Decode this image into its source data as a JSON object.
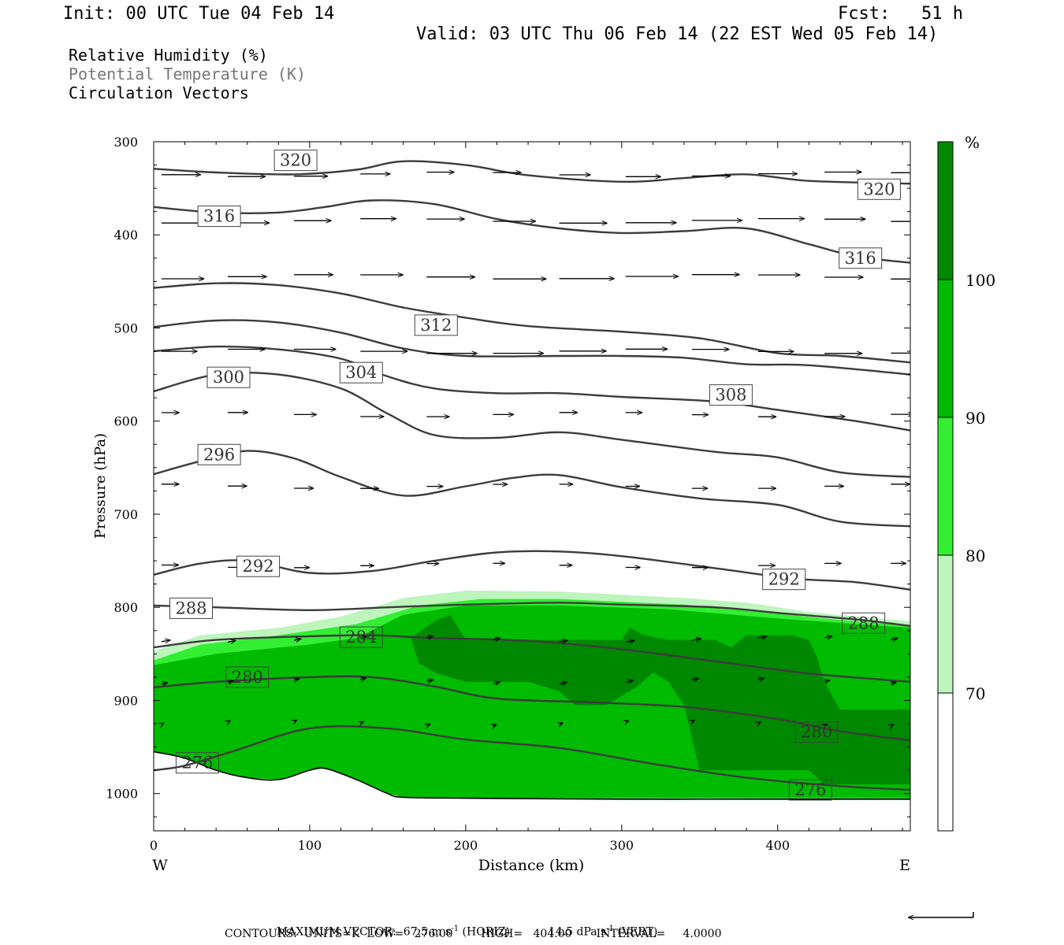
{
  "header": {
    "init": "Init: 00 UTC Tue 04 Feb 14",
    "fcst": "Fcst:   51 h",
    "valid": "Valid: 03 UTC Thu 06 Feb 14 (22 EST Wed 05 Feb 14)"
  },
  "titles": [
    {
      "text": "Relative Humidity (%)",
      "color": "#000000"
    },
    {
      "text": "Potential Temperature (K)",
      "color": "#777777"
    },
    {
      "text": "Circulation Vectors",
      "color": "#000000"
    }
  ],
  "chart_data": {
    "type": "cross-section contour",
    "xlabel": "Distance (km)",
    "ylabel": "Pressure (hPa)",
    "xlim": [
      0,
      485
    ],
    "ylim": [
      1040,
      300
    ],
    "x_ticks": [
      "0",
      "100",
      "200",
      "300",
      "400"
    ],
    "y_ticks": [
      "300",
      "400",
      "500",
      "600",
      "700",
      "800",
      "900",
      "1000"
    ],
    "x_end_labels": {
      "left": "W",
      "right": "E"
    },
    "colorbar": {
      "unit": "%",
      "levels": [
        "70",
        "80",
        "90",
        "100"
      ],
      "colors": [
        "#ffffff",
        "#bdf5bd",
        "#33ee33",
        "#00bb00",
        "#008800"
      ]
    },
    "theta_contours": [
      {
        "label": "320",
        "points": [
          [
            0,
            329
          ],
          [
            40,
            333
          ],
          [
            90,
            335
          ],
          [
            130,
            330
          ],
          [
            160,
            321
          ],
          [
            200,
            325
          ],
          [
            240,
            336
          ],
          [
            300,
            343
          ],
          [
            340,
            339
          ],
          [
            380,
            335
          ],
          [
            420,
            342
          ],
          [
            485,
            345
          ]
        ],
        "label_at": [
          [
            91,
            320
          ],
          [
            465,
            351
          ]
        ]
      },
      {
        "label": "316",
        "points": [
          [
            0,
            370
          ],
          [
            40,
            376
          ],
          [
            80,
            376
          ],
          [
            110,
            370
          ],
          [
            140,
            363
          ],
          [
            180,
            367
          ],
          [
            220,
            383
          ],
          [
            260,
            393
          ],
          [
            300,
            398
          ],
          [
            340,
            396
          ],
          [
            380,
            393
          ],
          [
            420,
            410
          ],
          [
            450,
            423
          ],
          [
            485,
            430
          ]
        ],
        "label_at": [
          [
            42,
            380
          ],
          [
            453,
            425
          ]
        ]
      },
      {
        "label": "312",
        "points": [
          [
            0,
            457
          ],
          [
            40,
            452
          ],
          [
            80,
            454
          ],
          [
            120,
            463
          ],
          [
            160,
            478
          ],
          [
            200,
            489
          ],
          [
            240,
            498
          ],
          [
            300,
            504
          ],
          [
            350,
            511
          ],
          [
            400,
            527
          ],
          [
            440,
            530
          ],
          [
            485,
            537
          ]
        ],
        "label_at": [
          [
            181,
            497
          ]
        ]
      },
      {
        "label": "308",
        "points": [
          [
            0,
            499
          ],
          [
            40,
            492
          ],
          [
            80,
            494
          ],
          [
            120,
            505
          ],
          [
            160,
            522
          ],
          [
            200,
            530
          ],
          [
            260,
            530
          ],
          [
            300,
            530
          ],
          [
            340,
            532
          ],
          [
            380,
            539
          ],
          [
            420,
            540
          ],
          [
            485,
            550
          ]
        ],
        "label_at": [
          [
            370,
            572
          ]
        ]
      },
      {
        "label": "304",
        "points": [
          [
            0,
            525
          ],
          [
            40,
            520
          ],
          [
            80,
            523
          ],
          [
            120,
            533
          ],
          [
            150,
            552
          ],
          [
            180,
            565
          ],
          [
            220,
            570
          ],
          [
            260,
            570
          ],
          [
            300,
            574
          ],
          [
            360,
            579
          ],
          [
            400,
            588
          ],
          [
            450,
            600
          ],
          [
            485,
            610
          ]
        ],
        "label_at": [
          [
            133,
            548
          ]
        ]
      },
      {
        "label": "300",
        "points": [
          [
            0,
            568
          ],
          [
            40,
            550
          ],
          [
            80,
            550
          ],
          [
            120,
            565
          ],
          [
            150,
            592
          ],
          [
            180,
            615
          ],
          [
            220,
            618
          ],
          [
            260,
            612
          ],
          [
            300,
            620
          ],
          [
            360,
            633
          ],
          [
            400,
            639
          ],
          [
            440,
            655
          ],
          [
            485,
            660
          ]
        ],
        "label_at": [
          [
            48,
            553
          ]
        ]
      },
      {
        "label": "296",
        "points": [
          [
            0,
            657
          ],
          [
            30,
            643
          ],
          [
            60,
            632
          ],
          [
            90,
            640
          ],
          [
            120,
            660
          ],
          [
            160,
            680
          ],
          [
            200,
            670
          ],
          [
            230,
            661
          ],
          [
            260,
            658
          ],
          [
            300,
            671
          ],
          [
            350,
            683
          ],
          [
            400,
            690
          ],
          [
            440,
            708
          ],
          [
            485,
            713
          ]
        ],
        "label_at": [
          [
            42,
            636
          ]
        ]
      },
      {
        "label": "292",
        "points": [
          [
            0,
            765
          ],
          [
            30,
            753
          ],
          [
            60,
            750
          ],
          [
            100,
            763
          ],
          [
            140,
            761
          ],
          [
            180,
            750
          ],
          [
            220,
            741
          ],
          [
            260,
            740
          ],
          [
            300,
            745
          ],
          [
            360,
            758
          ],
          [
            410,
            769
          ],
          [
            450,
            773
          ],
          [
            485,
            781
          ]
        ],
        "label_at": [
          [
            67,
            756
          ],
          [
            404,
            770
          ]
        ]
      },
      {
        "label": "288",
        "points": [
          [
            0,
            798
          ],
          [
            40,
            800
          ],
          [
            100,
            803
          ],
          [
            150,
            800
          ],
          [
            200,
            797
          ],
          [
            260,
            795
          ],
          [
            300,
            797
          ],
          [
            360,
            800
          ],
          [
            400,
            806
          ],
          [
            450,
            813
          ],
          [
            485,
            820
          ]
        ],
        "label_at": [
          [
            24,
            801
          ],
          [
            455,
            817
          ]
        ]
      },
      {
        "label": "284",
        "points": [
          [
            0,
            843
          ],
          [
            40,
            835
          ],
          [
            100,
            831
          ],
          [
            140,
            830
          ],
          [
            180,
            833
          ],
          [
            240,
            836
          ],
          [
            300,
            845
          ],
          [
            360,
            858
          ],
          [
            420,
            871
          ],
          [
            485,
            880
          ]
        ],
        "label_at": [
          [
            133,
            832
          ]
        ]
      },
      {
        "label": "280",
        "points": [
          [
            0,
            886
          ],
          [
            40,
            880
          ],
          [
            100,
            875
          ],
          [
            140,
            875
          ],
          [
            180,
            885
          ],
          [
            220,
            898
          ],
          [
            280,
            902
          ],
          [
            340,
            907
          ],
          [
            400,
            920
          ],
          [
            440,
            933
          ],
          [
            485,
            943
          ]
        ],
        "label_at": [
          [
            60,
            875
          ],
          [
            425,
            934
          ]
        ]
      },
      {
        "label": "276",
        "points": [
          [
            0,
            975
          ],
          [
            20,
            970
          ],
          [
            50,
            955
          ],
          [
            100,
            930
          ],
          [
            150,
            930
          ],
          [
            200,
            942
          ],
          [
            260,
            951
          ],
          [
            320,
            968
          ],
          [
            380,
            983
          ],
          [
            440,
            992
          ],
          [
            485,
            996
          ]
        ],
        "label_at": [
          [
            28,
            967
          ],
          [
            421,
            996
          ]
        ]
      }
    ],
    "rh_regions": [
      {
        "level": "70",
        "points": [
          [
            0,
            847
          ],
          [
            30,
            830
          ],
          [
            80,
            822
          ],
          [
            120,
            810
          ],
          [
            160,
            790
          ],
          [
            200,
            782
          ],
          [
            260,
            783
          ],
          [
            340,
            790
          ],
          [
            380,
            795
          ],
          [
            420,
            805
          ],
          [
            485,
            815
          ],
          [
            485,
            1005
          ],
          [
            0,
            1005
          ]
        ]
      },
      {
        "level": "80",
        "points": [
          [
            0,
            857
          ],
          [
            30,
            840
          ],
          [
            80,
            830
          ],
          [
            130,
            818
          ],
          [
            170,
            798
          ],
          [
            210,
            791
          ],
          [
            260,
            791
          ],
          [
            340,
            797
          ],
          [
            390,
            805
          ],
          [
            430,
            812
          ],
          [
            485,
            820
          ],
          [
            485,
            1005
          ],
          [
            0,
            1005
          ]
        ]
      },
      {
        "level": "90",
        "points": [
          [
            0,
            862
          ],
          [
            40,
            850
          ],
          [
            100,
            840
          ],
          [
            130,
            833
          ],
          [
            160,
            808
          ],
          [
            200,
            798
          ],
          [
            260,
            798
          ],
          [
            330,
            802
          ],
          [
            400,
            812
          ],
          [
            450,
            818
          ],
          [
            485,
            822
          ],
          [
            485,
            1005
          ],
          [
            0,
            1005
          ]
        ]
      },
      {
        "level": "100",
        "points": [
          [
            165,
            833
          ],
          [
            180,
            815
          ],
          [
            190,
            808
          ],
          [
            200,
            835
          ],
          [
            240,
            835
          ],
          [
            280,
            835
          ],
          [
            300,
            835
          ],
          [
            305,
            822
          ],
          [
            315,
            830
          ],
          [
            330,
            835
          ],
          [
            350,
            835
          ],
          [
            360,
            835
          ],
          [
            370,
            843
          ],
          [
            380,
            830
          ],
          [
            410,
            830
          ],
          [
            420,
            835
          ],
          [
            425,
            853
          ],
          [
            430,
            880
          ],
          [
            440,
            910
          ],
          [
            485,
            910
          ],
          [
            485,
            990
          ],
          [
            430,
            990
          ],
          [
            420,
            975
          ],
          [
            350,
            975
          ],
          [
            345,
            940
          ],
          [
            340,
            905
          ],
          [
            330,
            880
          ],
          [
            320,
            870
          ],
          [
            310,
            885
          ],
          [
            290,
            905
          ],
          [
            270,
            905
          ],
          [
            260,
            890
          ],
          [
            240,
            880
          ],
          [
            230,
            880
          ],
          [
            200,
            880
          ],
          [
            180,
            870
          ],
          [
            170,
            860
          ]
        ]
      }
    ],
    "terrain": [
      [
        0,
        955
      ],
      [
        20,
        962
      ],
      [
        40,
        975
      ],
      [
        60,
        983
      ],
      [
        80,
        985
      ],
      [
        100,
        975
      ],
      [
        110,
        973
      ],
      [
        130,
        985
      ],
      [
        150,
        1000
      ],
      [
        160,
        1004
      ],
      [
        200,
        1005
      ],
      [
        300,
        1006
      ],
      [
        400,
        1006
      ],
      [
        485,
        1006
      ]
    ],
    "vectors": {
      "note": "circulation vectors, max 67.5 m s-1 horiz / 14.5 dPa s-1 vert"
    },
    "footer": {
      "max_vector_label": "MAXIMUM VECTOR:",
      "horiz_value": "67.5 m s",
      "horiz_exp": "-1",
      "horiz_tag": "(HORIZ)",
      "vert_value": "14.5 dPa s",
      "vert_exp": "-1",
      "vert_tag": "(VERT)",
      "contours_line": "CONTOURS:  UNITS=K  LOW=   276.00        HIGH=   404.00       INTERVAL=     4.0000"
    }
  }
}
